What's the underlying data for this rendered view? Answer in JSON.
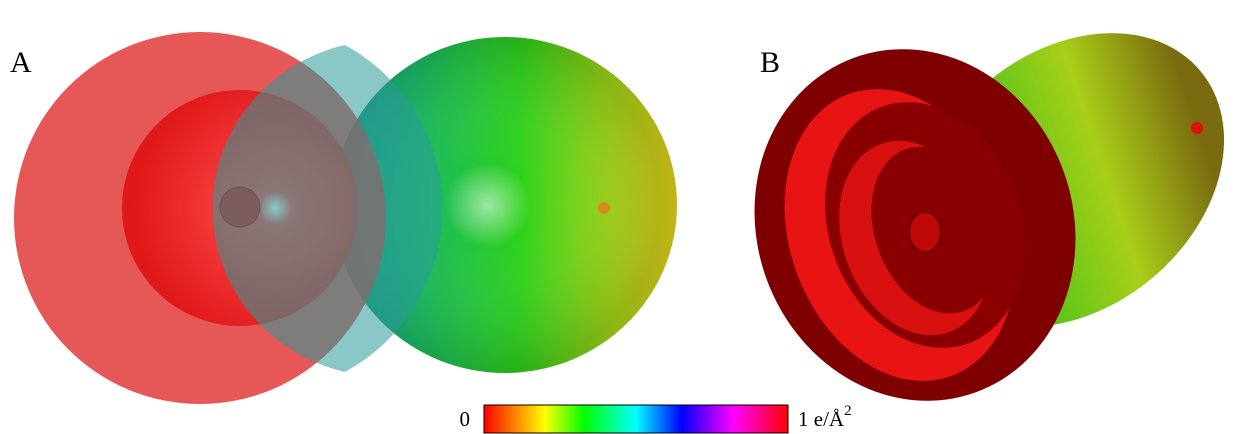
{
  "panels": [
    {
      "label": "A"
    },
    {
      "label": "B"
    }
  ],
  "colorbar": {
    "min_label": "0",
    "max_label": "1 e/Å",
    "max_label_superscript": "2"
  }
}
